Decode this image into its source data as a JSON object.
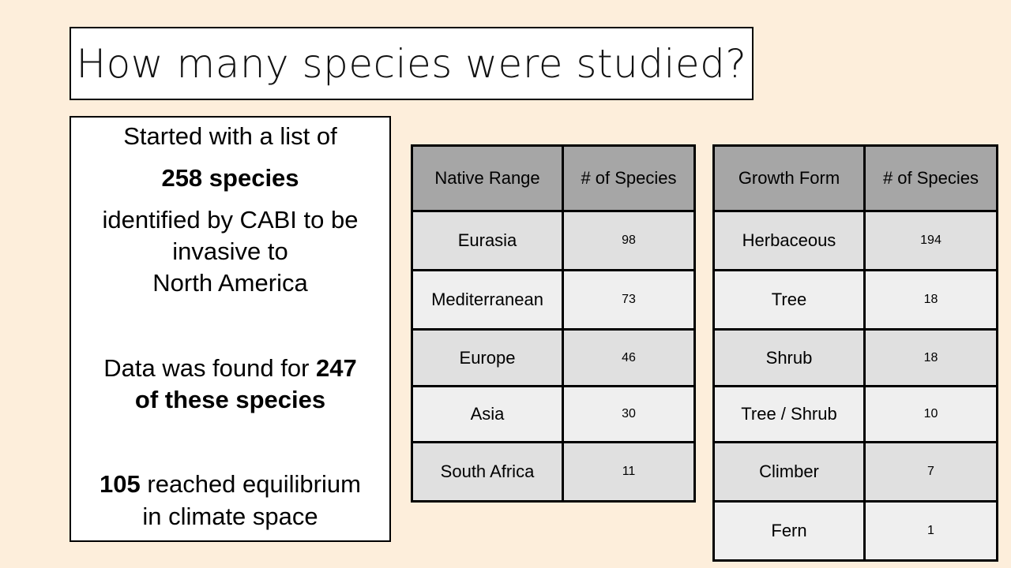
{
  "title": "How many species were studied?",
  "info": {
    "l1": "Started with a list of",
    "l2_bold": "258 species",
    "l3": "identified by CABI to be",
    "l4": "invasive to",
    "l5": "North America",
    "l6_pre": "Data was found for ",
    "l6_bold": "247",
    "l7_bold": "of these species",
    "l8_bold": "105",
    "l8_post": " reached equilibrium",
    "l9": "in climate space"
  },
  "native_table": {
    "headers": [
      "Native Range",
      "# of Species"
    ],
    "rows": [
      [
        "Eurasia",
        "98"
      ],
      [
        "Mediterranean",
        "73"
      ],
      [
        "Europe",
        "46"
      ],
      [
        "Asia",
        "30"
      ],
      [
        "South Africa",
        "11"
      ]
    ]
  },
  "growth_table": {
    "headers": [
      "Growth Form",
      "# of Species"
    ],
    "rows": [
      [
        "Herbaceous",
        "194"
      ],
      [
        "Tree",
        "18"
      ],
      [
        "Shrub",
        "18"
      ],
      [
        "Tree / Shrub",
        "10"
      ],
      [
        "Climber",
        "7"
      ],
      [
        "Fern",
        "1"
      ]
    ]
  }
}
